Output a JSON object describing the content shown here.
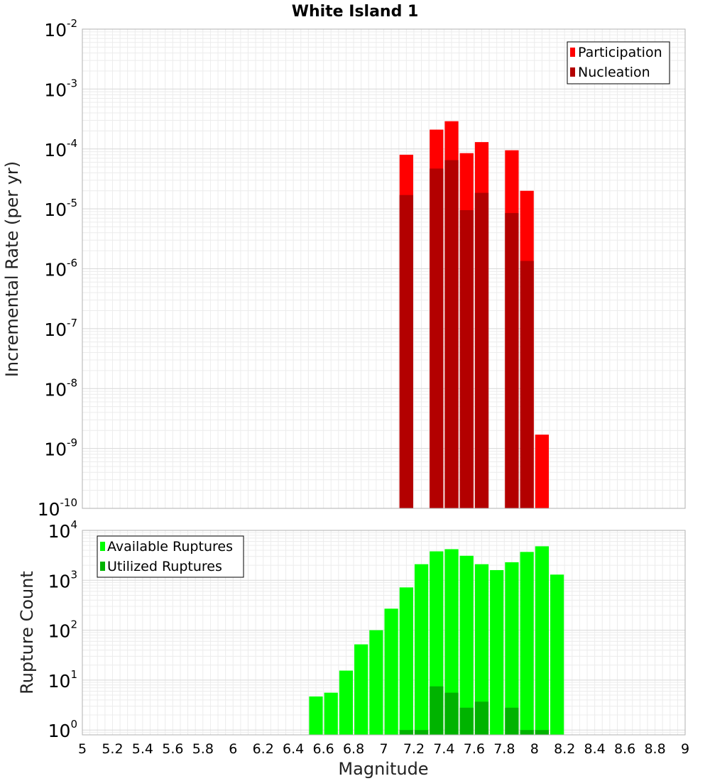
{
  "chart_data": [
    {
      "type": "bar",
      "title": "White Island 1",
      "xlabel": "",
      "ylabel": "Incremental Rate (per yr)",
      "yscale": "log",
      "xlim": [
        5,
        9
      ],
      "ylim": [
        1e-10,
        0.01
      ],
      "y_tick_exponents": [
        -10,
        -9,
        -8,
        -7,
        -6,
        -5,
        -4,
        -3,
        -2
      ],
      "grid": true,
      "legend_position": "top-right",
      "series": [
        {
          "name": "Participation",
          "color": "#ff0000",
          "points": [
            {
              "x": 7.15,
              "y": 8e-05
            },
            {
              "x": 7.35,
              "y": 0.00021
            },
            {
              "x": 7.45,
              "y": 0.00029
            },
            {
              "x": 7.55,
              "y": 8.5e-05
            },
            {
              "x": 7.65,
              "y": 0.00013
            },
            {
              "x": 7.85,
              "y": 9.5e-05
            },
            {
              "x": 7.95,
              "y": 2e-05
            },
            {
              "x": 8.05,
              "y": 1.7e-09
            }
          ]
        },
        {
          "name": "Nucleation",
          "color": "#b30000",
          "points": [
            {
              "x": 7.15,
              "y": 1.7e-05
            },
            {
              "x": 7.35,
              "y": 4.7e-05
            },
            {
              "x": 7.45,
              "y": 6.5e-05
            },
            {
              "x": 7.55,
              "y": 9.5e-06
            },
            {
              "x": 7.65,
              "y": 1.85e-05
            },
            {
              "x": 7.85,
              "y": 8.5e-06
            },
            {
              "x": 7.95,
              "y": 1.35e-06
            }
          ]
        }
      ]
    },
    {
      "type": "bar",
      "title": "",
      "xlabel": "Magnitude",
      "ylabel": "Rupture Count",
      "yscale": "log",
      "xlim": [
        5,
        9
      ],
      "ylim": [
        0.8,
        10000.0
      ],
      "x_ticks": [
        "5",
        "5.2",
        "5.4",
        "5.6",
        "5.8",
        "6",
        "6.2",
        "6.4",
        "6.6",
        "6.8",
        "7",
        "7.2",
        "7.4",
        "7.6",
        "7.8",
        "8",
        "8.2",
        "8.4",
        "8.6",
        "8.8",
        "9"
      ],
      "y_tick_exponents": [
        0,
        1,
        2,
        3,
        4
      ],
      "grid": true,
      "legend_position": "top-left",
      "series": [
        {
          "name": "Available Ruptures",
          "color": "#00ff00",
          "points": [
            {
              "x": 6.55,
              "y": 4.7
            },
            {
              "x": 6.65,
              "y": 5.6
            },
            {
              "x": 6.75,
              "y": 15.5
            },
            {
              "x": 6.85,
              "y": 52
            },
            {
              "x": 6.95,
              "y": 100
            },
            {
              "x": 7.05,
              "y": 270
            },
            {
              "x": 7.15,
              "y": 720
            },
            {
              "x": 7.25,
              "y": 2100
            },
            {
              "x": 7.35,
              "y": 3800
            },
            {
              "x": 7.45,
              "y": 4200
            },
            {
              "x": 7.55,
              "y": 3100
            },
            {
              "x": 7.65,
              "y": 2100
            },
            {
              "x": 7.75,
              "y": 1600
            },
            {
              "x": 7.85,
              "y": 2300
            },
            {
              "x": 7.95,
              "y": 3700
            },
            {
              "x": 8.05,
              "y": 4800
            },
            {
              "x": 8.15,
              "y": 1300
            }
          ]
        },
        {
          "name": "Utilized Ruptures",
          "color": "#00b300",
          "points": [
            {
              "x": 7.15,
              "y": 1
            },
            {
              "x": 7.25,
              "y": 1
            },
            {
              "x": 7.35,
              "y": 7.5
            },
            {
              "x": 7.45,
              "y": 5.6
            },
            {
              "x": 7.55,
              "y": 2.8
            },
            {
              "x": 7.65,
              "y": 3.7
            },
            {
              "x": 7.85,
              "y": 2.8
            },
            {
              "x": 7.95,
              "y": 1
            },
            {
              "x": 8.05,
              "y": 1
            }
          ]
        }
      ]
    }
  ]
}
